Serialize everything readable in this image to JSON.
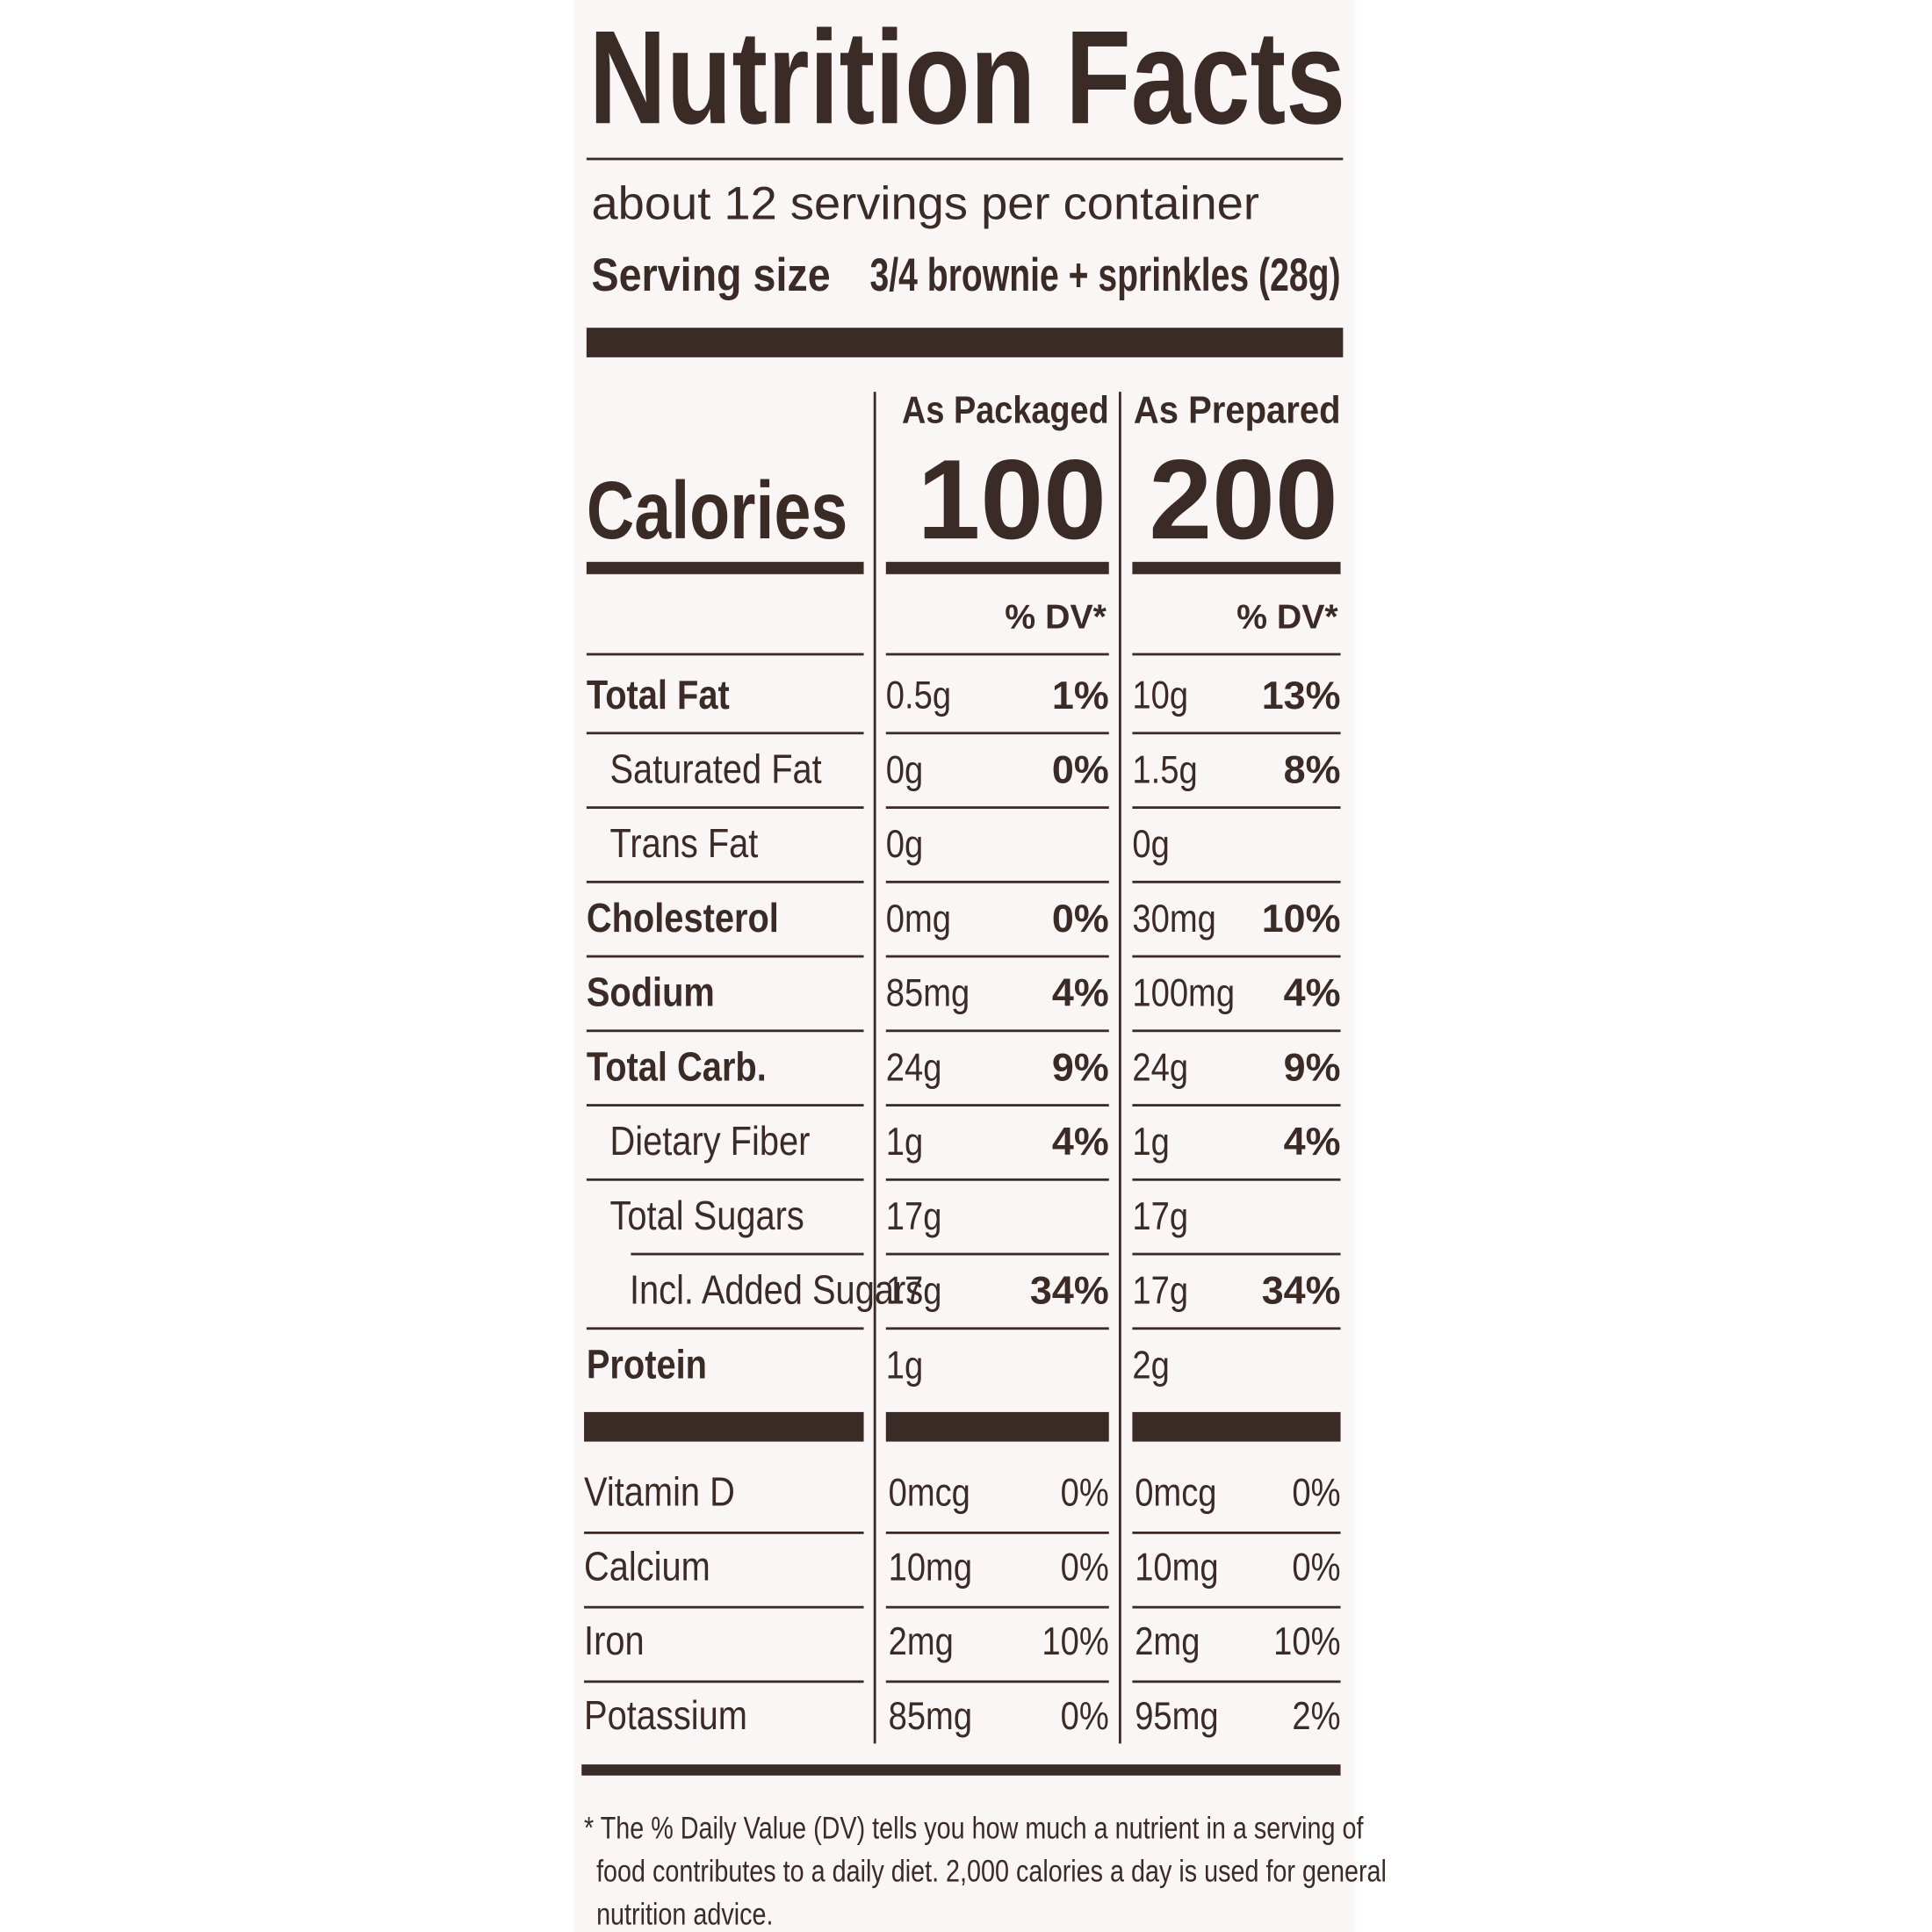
{
  "header": {
    "title": "Nutrition Facts",
    "servings": "about 12 servings per container",
    "serving_size_label": "Serving size",
    "serving_size": "3/4 brownie + sprinkles (28g)"
  },
  "calories_label": "Calories",
  "columns": [
    {
      "name": "As Packaged",
      "calories": "100",
      "dv_header": "% DV*"
    },
    {
      "name": "As Prepared",
      "calories": "200",
      "dv_header": "% DV*"
    }
  ],
  "nutrients": [
    {
      "label": "Total Fat",
      "values": [
        {
          "amount": "0.5g",
          "dv": "1%"
        },
        {
          "amount": "10g",
          "dv": "13%"
        }
      ]
    },
    {
      "label": "Saturated Fat",
      "values": [
        {
          "amount": "0g",
          "dv": "0%"
        },
        {
          "amount": "1.5g",
          "dv": "8%"
        }
      ]
    },
    {
      "label": "Trans Fat",
      "values": [
        {
          "amount": "0g"
        },
        {
          "amount": "0g"
        }
      ]
    },
    {
      "label": "Cholesterol",
      "values": [
        {
          "amount": "0mg",
          "dv": "0%"
        },
        {
          "amount": "30mg",
          "dv": "10%"
        }
      ]
    },
    {
      "label": "Sodium",
      "values": [
        {
          "amount": "85mg",
          "dv": "4%"
        },
        {
          "amount": "100mg",
          "dv": "4%"
        }
      ]
    },
    {
      "label": "Total Carb.",
      "values": [
        {
          "amount": "24g",
          "dv": "9%"
        },
        {
          "amount": "24g",
          "dv": "9%"
        }
      ]
    },
    {
      "label": "Dietary Fiber",
      "values": [
        {
          "amount": "1g",
          "dv": "4%"
        },
        {
          "amount": "1g",
          "dv": "4%"
        }
      ]
    },
    {
      "label": "Total Sugars",
      "values": [
        {
          "amount": "17g"
        },
        {
          "amount": "17g"
        }
      ]
    },
    {
      "label": "Incl. Added Sugars",
      "values": [
        {
          "amount": "17g",
          "dv": "34%"
        },
        {
          "amount": "17g",
          "dv": "34%"
        }
      ]
    },
    {
      "label": "Protein",
      "values": [
        {
          "amount": "1g"
        },
        {
          "amount": "2g"
        }
      ]
    }
  ],
  "vitamins": [
    {
      "label": "Vitamin D",
      "values": [
        {
          "amount": "0mcg",
          "dv": "0%"
        },
        {
          "amount": "0mcg",
          "dv": "0%"
        }
      ]
    },
    {
      "label": "Calcium",
      "values": [
        {
          "amount": "10mg",
          "dv": "0%"
        },
        {
          "amount": "10mg",
          "dv": "0%"
        }
      ]
    },
    {
      "label": "Iron",
      "values": [
        {
          "amount": "2mg",
          "dv": "10%"
        },
        {
          "amount": "2mg",
          "dv": "10%"
        }
      ]
    },
    {
      "label": "Potassium",
      "values": [
        {
          "amount": "85mg",
          "dv": "0%"
        },
        {
          "amount": "95mg",
          "dv": "2%"
        }
      ]
    }
  ],
  "footnote": [
    "* The % Daily Value (DV) tells you how much a nutrient in a serving of",
    "food contributes to a daily diet. 2,000 calories a day is used for general",
    "nutrition advice."
  ]
}
